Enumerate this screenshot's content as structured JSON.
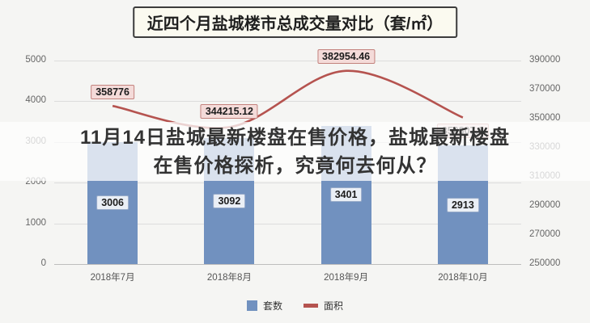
{
  "chart": {
    "title": "近四个月盐城楼市总成交量对比（套/㎡）"
  },
  "overlay": {
    "line1": "11月14日盐城最新楼盘在售价格，盐城最新楼盘",
    "line2": "在售价格探析，究竟何去何从？"
  },
  "chart_data": {
    "type": "bar",
    "subtype": "bar-line-combo",
    "title": "近四个月盐城楼市总成交量对比（套/㎡）",
    "categories": [
      "2018年7月",
      "2018年8月",
      "2018年9月",
      "2018年10月"
    ],
    "series": [
      {
        "name": "套数",
        "type": "bar",
        "axis": "left",
        "values": [
          3006,
          3092,
          3401,
          2913
        ],
        "labels": [
          "3006",
          "3092",
          "3401",
          "2913"
        ],
        "color": "#7191bf"
      },
      {
        "name": "面积",
        "type": "line",
        "axis": "right",
        "values": [
          358776,
          344215.12,
          382954.46,
          350807.8
        ],
        "labels": [
          "358776",
          "344215.12",
          "382954.46",
          "350807.8"
        ],
        "color": "#b5534f",
        "label_dy": [
          -17,
          -19,
          -18,
          16
        ]
      }
    ],
    "left_axis": {
      "min": 0,
      "max": 5000,
      "ticks": [
        0,
        1000,
        2000,
        3000,
        4000,
        5000
      ]
    },
    "right_axis": {
      "min": 250000,
      "max": 390000,
      "ticks": [
        250000,
        270000,
        290000,
        310000,
        330000,
        350000,
        370000,
        390000
      ]
    },
    "xlabel": "",
    "ylabel_left": "套数",
    "ylabel_right": "面积",
    "grid": true,
    "legend_position": "bottom"
  }
}
